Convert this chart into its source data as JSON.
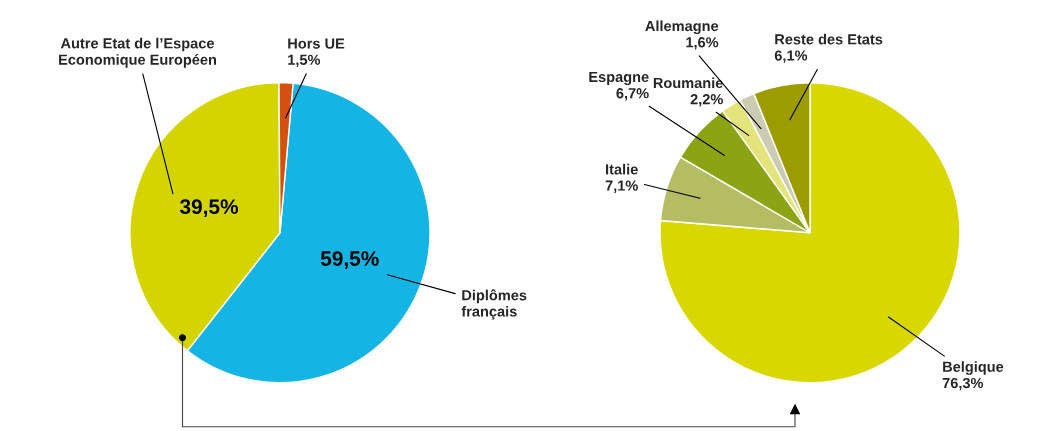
{
  "chart_data": [
    {
      "type": "pie",
      "categories": [
        "Diplômes\nfrançais",
        "Autre Etat de l’Espace\nEconomique Européen",
        "Hors UE"
      ],
      "values": [
        59.5,
        39.5,
        1.5
      ],
      "colors": [
        "#14b4e4",
        "#d4d400",
        "#d4500f"
      ],
      "value_labels": [
        "59,5%",
        "39,5%",
        "1,5%"
      ]
    },
    {
      "type": "pie",
      "categories": [
        "Belgique",
        "Italie",
        "Espagne",
        "Roumanie",
        "Allemagne",
        "Reste des Etats"
      ],
      "values": [
        76.3,
        7.1,
        6.7,
        2.2,
        1.6,
        6.1
      ],
      "colors": [
        "#d8d800",
        "#b4bc64",
        "#8ca414",
        "#e4e47c",
        "#ccccb4",
        "#9c9c00"
      ],
      "value_labels": [
        "76,3%",
        "7,1%",
        "6,7%",
        "2,2%",
        "1,6%",
        "6,1%"
      ]
    }
  ]
}
